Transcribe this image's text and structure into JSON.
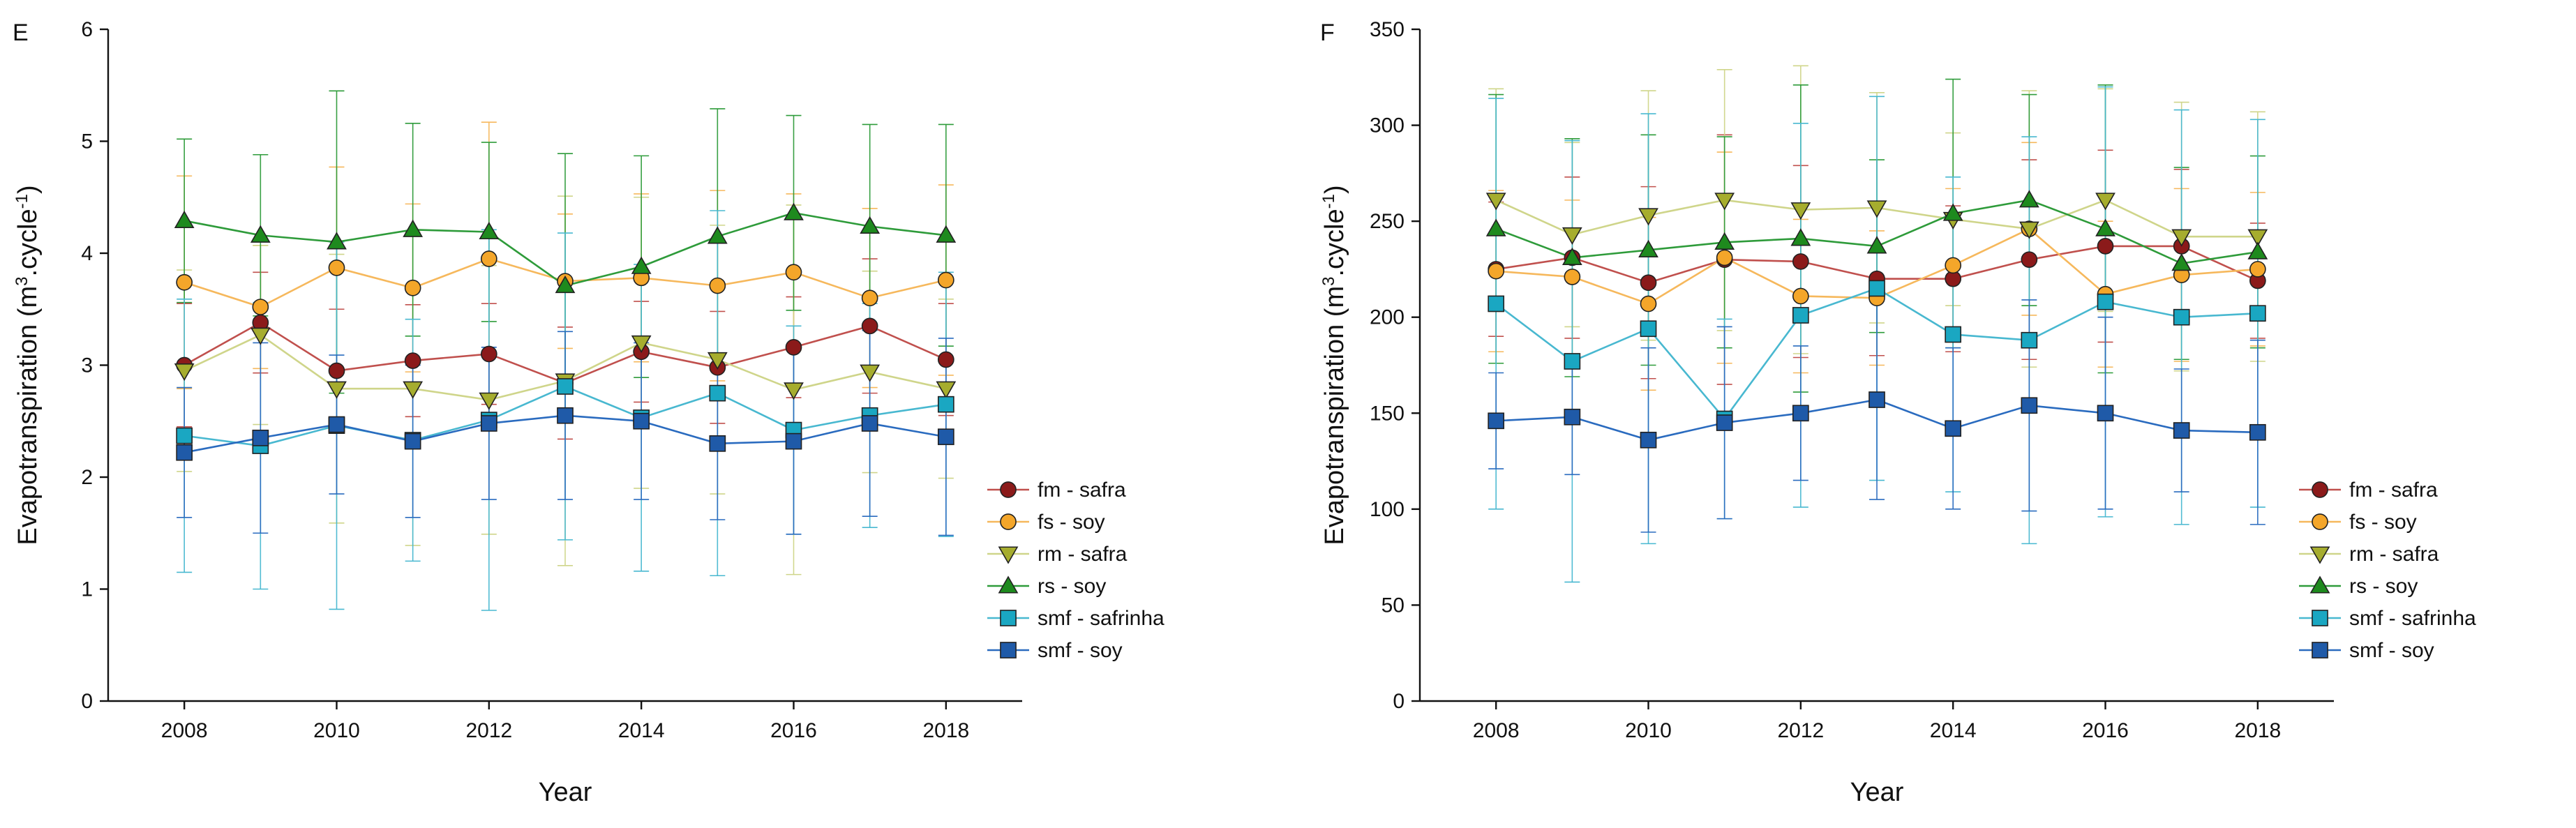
{
  "chart_data": [
    {
      "type": "line",
      "panel_label": "E",
      "xlabel": "Year",
      "ylabel": "Evapotranspiration (m",
      "ylabel_sup": "3",
      "ylabel_mid": ".cycle",
      "ylabel_sup2": "-1",
      "ylabel_end": ")",
      "ylim": [
        0,
        6
      ],
      "yticks": [
        "0",
        "1",
        "2",
        "3",
        "4",
        "5",
        "6"
      ],
      "xlim": [
        2007,
        2019
      ],
      "xticks": [
        "2008",
        "2010",
        "2012",
        "2014",
        "2016",
        "2018"
      ],
      "legend_position": "right",
      "x": [
        2008,
        2009,
        2010,
        2011,
        2012,
        2013,
        2014,
        2015,
        2016,
        2017,
        2018
      ],
      "series": [
        {
          "name": "fm - safra",
          "marker": "circle",
          "color": "#8b1a1a",
          "line_color": "#c0504d",
          "values": [
            3.0,
            3.38,
            2.95,
            3.04,
            3.1,
            2.84,
            3.12,
            2.98,
            3.16,
            3.35,
            3.05
          ],
          "errors": [
            0.55,
            0.45,
            0.55,
            0.5,
            0.45,
            0.5,
            0.45,
            0.5,
            0.45,
            0.6,
            0.5
          ]
        },
        {
          "name": "fs - soy",
          "marker": "circle",
          "color": "#f4a62a",
          "line_color": "#f6b85c",
          "values": [
            3.74,
            3.52,
            3.87,
            3.69,
            3.95,
            3.75,
            3.78,
            3.71,
            3.83,
            3.6,
            3.76
          ],
          "errors": [
            0.95,
            0.55,
            0.9,
            0.75,
            1.22,
            0.6,
            0.75,
            0.85,
            0.7,
            0.8,
            0.85
          ]
        },
        {
          "name": "rm - safra",
          "marker": "triangle-down",
          "color": "#a6ad2e",
          "line_color": "#cfd58a",
          "values": [
            2.95,
            3.27,
            2.79,
            2.79,
            2.69,
            2.86,
            3.2,
            3.05,
            2.78,
            2.94,
            2.79
          ],
          "errors": [
            0.9,
            0.8,
            1.2,
            1.4,
            1.2,
            1.65,
            1.3,
            1.2,
            1.65,
            0.9,
            0.8
          ]
        },
        {
          "name": "rs - soy",
          "marker": "triangle-up",
          "color": "#1e8a1e",
          "line_color": "#2e9b3a",
          "values": [
            4.29,
            4.16,
            4.1,
            4.21,
            4.19,
            3.71,
            3.88,
            4.15,
            4.36,
            4.24,
            4.16
          ],
          "errors": [
            0.73,
            0.72,
            1.35,
            0.95,
            0.8,
            1.18,
            0.99,
            1.14,
            0.87,
            0.91,
            0.99
          ]
        },
        {
          "name": "smf - safrinha",
          "marker": "square",
          "color": "#1aa7c2",
          "line_color": "#48b8d0",
          "values": [
            2.37,
            2.28,
            2.46,
            2.33,
            2.51,
            2.81,
            2.53,
            2.75,
            2.42,
            2.55,
            2.65
          ],
          "errors": [
            1.22,
            1.28,
            1.64,
            1.08,
            1.7,
            1.37,
            1.37,
            1.63,
            0.93,
            1.0,
            1.18
          ]
        },
        {
          "name": "smf - soy",
          "marker": "square",
          "color": "#1f5aa8",
          "line_color": "#2a6bbf",
          "values": [
            2.22,
            2.35,
            2.47,
            2.32,
            2.48,
            2.55,
            2.5,
            2.3,
            2.32,
            2.48,
            2.36
          ],
          "errors": [
            0.58,
            0.85,
            0.62,
            0.68,
            0.68,
            0.75,
            0.7,
            0.68,
            0.83,
            0.83,
            0.88
          ]
        }
      ]
    },
    {
      "type": "line",
      "panel_label": "F",
      "xlabel": "Year",
      "ylabel": "Evapotranspiration (m",
      "ylabel_sup": "3",
      "ylabel_mid": ".cycle",
      "ylabel_sup2": "-1",
      "ylabel_end": ")",
      "ylim": [
        0,
        350
      ],
      "yticks": [
        "0",
        "50",
        "100",
        "150",
        "200",
        "250",
        "300",
        "350"
      ],
      "xlim": [
        2007,
        2019
      ],
      "xticks": [
        "2008",
        "2010",
        "2012",
        "2014",
        "2016",
        "2018"
      ],
      "legend_position": "right",
      "x": [
        2008,
        2009,
        2010,
        2011,
        2012,
        2013,
        2014,
        2015,
        2016,
        2017,
        2018
      ],
      "series": [
        {
          "name": "fm - safra",
          "marker": "circle",
          "color": "#8b1a1a",
          "line_color": "#c0504d",
          "values": [
            225,
            231,
            218,
            230,
            229,
            220,
            220,
            230,
            237,
            237,
            219
          ],
          "errors": [
            35,
            42,
            50,
            65,
            50,
            40,
            38,
            52,
            50,
            40,
            30
          ]
        },
        {
          "name": "fs - soy",
          "marker": "circle",
          "color": "#f4a62a",
          "line_color": "#f6b85c",
          "values": [
            224,
            221,
            207,
            231,
            211,
            210,
            227,
            246,
            212,
            222,
            225
          ],
          "errors": [
            42,
            40,
            45,
            55,
            40,
            35,
            40,
            45,
            38,
            45,
            40
          ]
        },
        {
          "name": "rm - safra",
          "marker": "triangle-down",
          "color": "#a6ad2e",
          "line_color": "#cfd58a",
          "values": [
            261,
            243,
            253,
            261,
            256,
            257,
            251,
            246,
            261,
            242,
            242
          ],
          "errors": [
            58,
            48,
            65,
            68,
            75,
            60,
            45,
            72,
            58,
            70,
            65
          ]
        },
        {
          "name": "rs - soy",
          "marker": "triangle-up",
          "color": "#1e8a1e",
          "line_color": "#2e9b3a",
          "values": [
            246,
            231,
            235,
            239,
            241,
            237,
            254,
            261,
            246,
            228,
            234
          ],
          "errors": [
            70,
            62,
            60,
            55,
            80,
            45,
            70,
            55,
            75,
            50,
            50
          ]
        },
        {
          "name": "smf - safrinha",
          "marker": "square",
          "color": "#1aa7c2",
          "line_color": "#48b8d0",
          "values": [
            207,
            177,
            194,
            147,
            201,
            215,
            191,
            188,
            208,
            200,
            202
          ],
          "errors": [
            107,
            115,
            112,
            52,
            100,
            100,
            82,
            106,
            112,
            108,
            101
          ]
        },
        {
          "name": "smf - soy",
          "marker": "square",
          "color": "#1f5aa8",
          "line_color": "#2a6bbf",
          "values": [
            146,
            148,
            136,
            145,
            150,
            157,
            142,
            154,
            150,
            141,
            140
          ],
          "errors": [
            25,
            30,
            48,
            50,
            35,
            52,
            42,
            55,
            50,
            32,
            48
          ]
        }
      ]
    }
  ]
}
